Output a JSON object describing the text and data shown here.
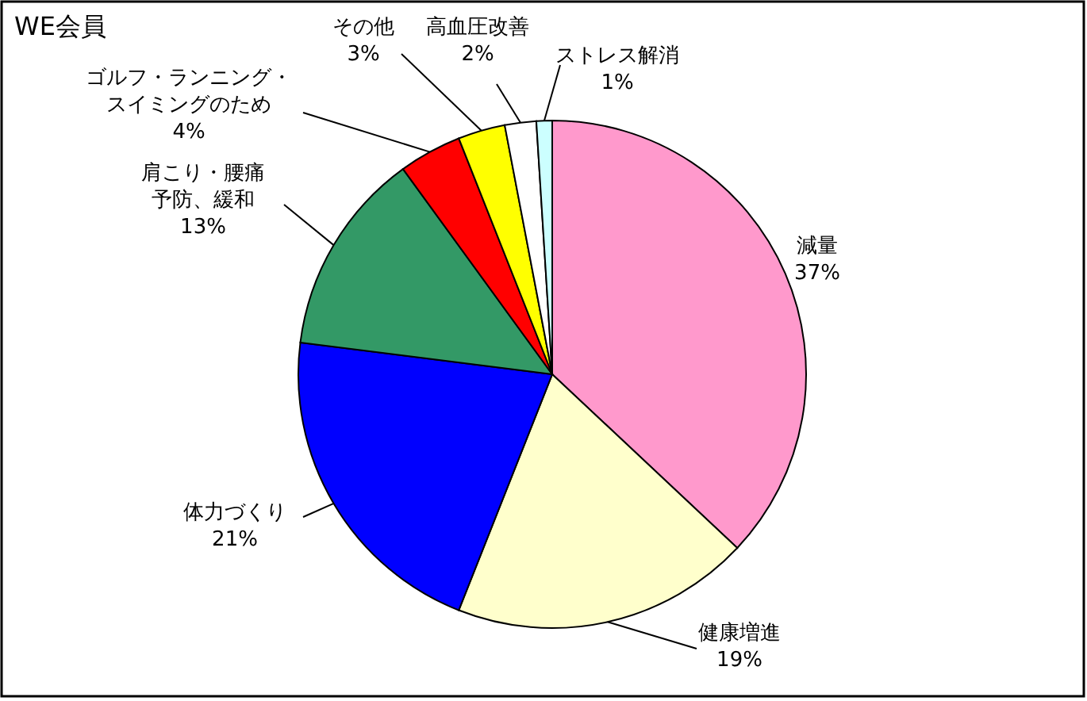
{
  "chart_data": {
    "type": "pie",
    "title": "WE会員",
    "categories": [
      "減量",
      "健康増進",
      "体力づくり",
      "肩こり・腰痛予防、緩和",
      "ゴルフ・ランニング・スイミングのため",
      "その他",
      "高血圧改善",
      "ストレス解消"
    ],
    "values": [
      37,
      19,
      21,
      13,
      4,
      3,
      2,
      1
    ],
    "value_labels": [
      "37%",
      "19%",
      "21%",
      "13%",
      "4%",
      "3%",
      "2%",
      "1%"
    ],
    "colors": [
      "#ff99cc",
      "#ffffcc",
      "#0000ff",
      "#339966",
      "#ff0000",
      "#ffff00",
      "#ffffff",
      "#ccffff"
    ],
    "legend": false
  }
}
